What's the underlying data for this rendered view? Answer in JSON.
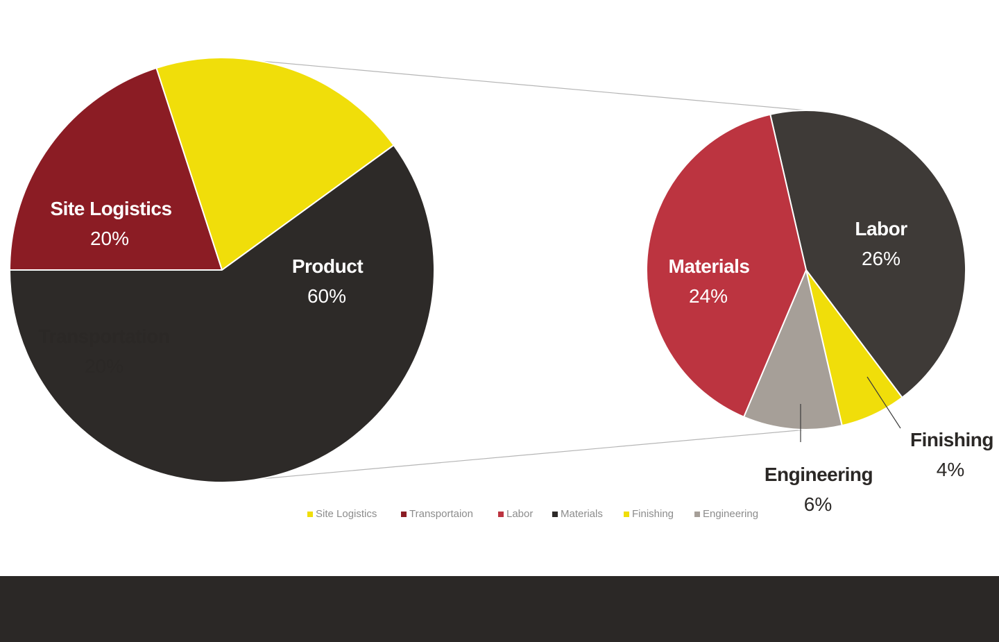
{
  "chart_data": [
    {
      "type": "pie",
      "slices": [
        {
          "label": "Site Logistics",
          "value": 20,
          "display": "20%",
          "color": "#8b1c24",
          "text_color": "#ffffff"
        },
        {
          "label": "Transportation",
          "value": 20,
          "display": "20%",
          "color": "#f0de0a",
          "text_color": "#2b2826"
        },
        {
          "label": "Product",
          "value": 60,
          "display": "60%",
          "color": "#2d2a28",
          "text_color": "#ffffff"
        }
      ]
    },
    {
      "type": "pie",
      "slices": [
        {
          "label": "Labor",
          "value": 26,
          "display": "26%",
          "color": "#3e3a37",
          "text_color": "#ffffff"
        },
        {
          "label": "Finishing",
          "value": 4,
          "display": "4%",
          "color": "#f0de0a",
          "text_color": "#2b2826"
        },
        {
          "label": "Engineering",
          "value": 6,
          "display": "6%",
          "color": "#a69f98",
          "text_color": "#2b2826"
        },
        {
          "label": "Materials",
          "value": 24,
          "display": "24%",
          "color": "#bc3440",
          "text_color": "#ffffff"
        }
      ]
    }
  ],
  "legend": [
    {
      "label": "Site Logistics",
      "color": "#f0de0a"
    },
    {
      "label": "Transportaion",
      "color": "#8b1c24"
    },
    {
      "label": "Labor",
      "color": "#bc3440"
    },
    {
      "label": "Materials",
      "color": "#2d2a28"
    },
    {
      "label": "Finishing",
      "color": "#f0de0a"
    },
    {
      "label": "Engineering",
      "color": "#a69f98"
    }
  ],
  "footer_color": "#2b2826"
}
